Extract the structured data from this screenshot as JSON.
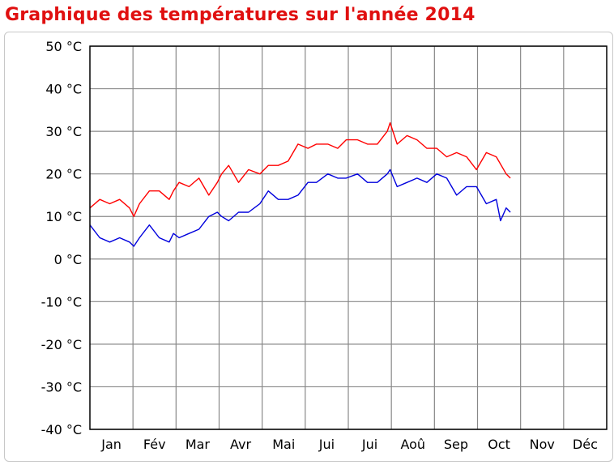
{
  "page": {
    "title": "Graphique des températures sur l'année 2014"
  },
  "colors": {
    "title": "#e01010",
    "max_series": "#ff0000",
    "min_series": "#0000dd",
    "grid": "#888888"
  },
  "chart_data": {
    "type": "line",
    "title": "Graphique des températures sur l'année 2014",
    "xlabel": "",
    "ylabel": "",
    "ylim": [
      -40,
      50
    ],
    "ytick_values": [
      50,
      40,
      30,
      20,
      10,
      0,
      -10,
      -20,
      -30,
      -40
    ],
    "ytick_labels": [
      "50 °C",
      "40 °C",
      "30 °C",
      "20 °C",
      "10 °C",
      "0 °C",
      "-10 °C",
      "-20 °C",
      "-30 °C",
      "-40 °C"
    ],
    "xlim": [
      0,
      365
    ],
    "categories": [
      "Jan",
      "Fév",
      "Mar",
      "Avr",
      "Mai",
      "Jui",
      "Jui",
      "Aoû",
      "Sep",
      "Oct",
      "Nov",
      "Déc"
    ],
    "grid": true,
    "legend": "none",
    "series": [
      {
        "color": "#ff0000",
        "x": [
          0,
          7,
          14,
          21,
          28,
          31,
          35,
          42,
          49,
          56,
          59,
          63,
          70,
          77,
          84,
          90,
          93,
          98,
          105,
          112,
          120,
          126,
          133,
          140,
          147,
          154,
          160,
          168,
          175,
          181,
          189,
          196,
          203,
          210,
          212,
          217,
          224,
          231,
          238,
          245,
          252,
          259,
          266,
          273,
          280,
          287,
          294,
          297
        ],
        "values": [
          12,
          14,
          13,
          14,
          12,
          10,
          13,
          16,
          16,
          14,
          16,
          18,
          17,
          19,
          15,
          18,
          20,
          22,
          18,
          21,
          20,
          22,
          22,
          23,
          27,
          26,
          27,
          27,
          26,
          28,
          28,
          27,
          27,
          30,
          32,
          27,
          29,
          28,
          26,
          26,
          24,
          25,
          24,
          21,
          25,
          24,
          20,
          19
        ]
      },
      {
        "color": "#0000dd",
        "x": [
          0,
          7,
          14,
          21,
          28,
          31,
          35,
          42,
          49,
          56,
          59,
          63,
          70,
          77,
          84,
          90,
          93,
          98,
          105,
          112,
          120,
          126,
          133,
          140,
          147,
          154,
          160,
          168,
          175,
          181,
          189,
          196,
          203,
          210,
          212,
          217,
          224,
          231,
          238,
          245,
          252,
          259,
          266,
          273,
          280,
          287,
          290,
          294,
          297
        ],
        "values": [
          8,
          5,
          4,
          5,
          4,
          3,
          5,
          8,
          5,
          4,
          6,
          5,
          6,
          7,
          10,
          11,
          10,
          9,
          11,
          11,
          13,
          16,
          14,
          14,
          15,
          18,
          18,
          20,
          19,
          19,
          20,
          18,
          18,
          20,
          21,
          17,
          18,
          19,
          18,
          20,
          19,
          15,
          17,
          17,
          13,
          14,
          9,
          12,
          11
        ]
      }
    ]
  }
}
